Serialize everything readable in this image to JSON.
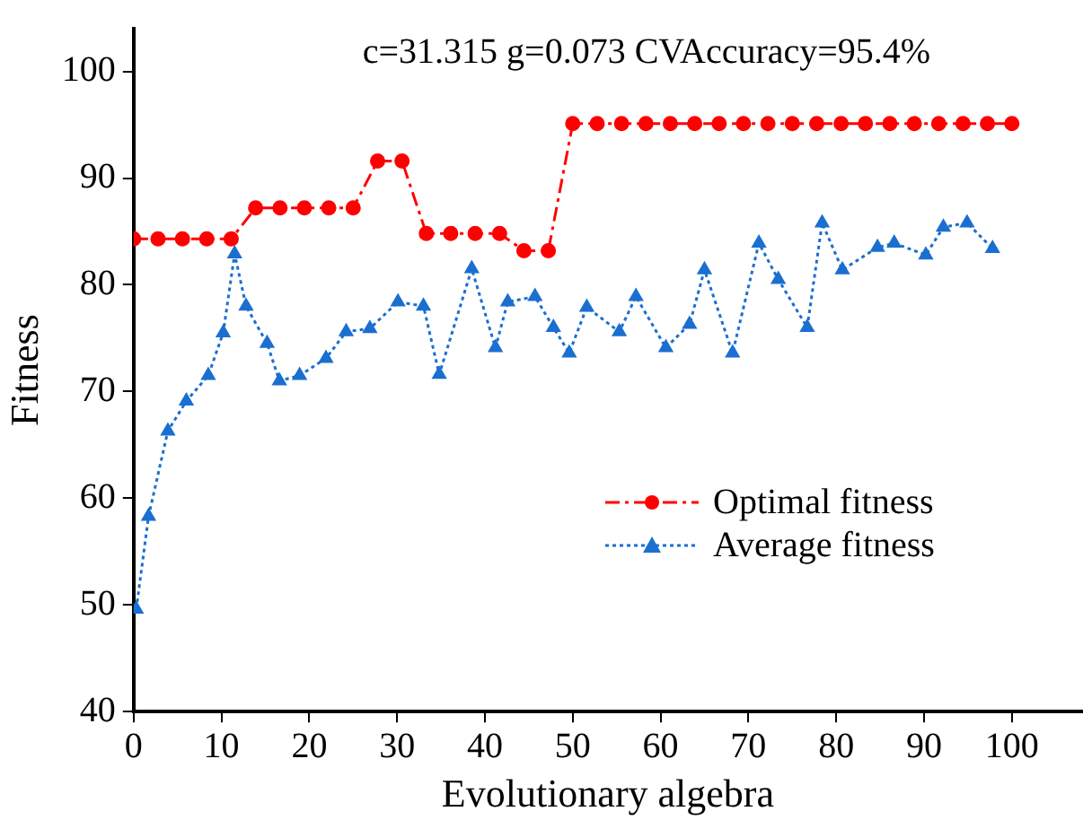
{
  "chart_data": {
    "type": "line",
    "title": "c=31.315 g=0.073 CVAccuracy=95.4%",
    "xlabel": "Evolutionary algebra",
    "ylabel": "Fitness",
    "xlim": [
      0,
      108
    ],
    "xticks": [
      0,
      10,
      20,
      30,
      40,
      50,
      60,
      70,
      80,
      90,
      100
    ],
    "ylim": [
      40,
      104
    ],
    "yticks": [
      40,
      50,
      60,
      70,
      80,
      90,
      100
    ],
    "grid": false,
    "legend": "right",
    "series": [
      {
        "name": "Optimal fitness",
        "color": "#ff0000",
        "marker": "circle",
        "line_style": "dashdot",
        "x": [
          0,
          2.78,
          5.56,
          8.33,
          11.11,
          13.89,
          16.67,
          19.44,
          22.22,
          25,
          27.78,
          30.56,
          33.33,
          36.11,
          38.89,
          41.67,
          44.44,
          47.22,
          50,
          52.78,
          55.56,
          58.33,
          61.11,
          63.89,
          66.67,
          69.44,
          72.22,
          75,
          77.78,
          80.56,
          83.33,
          86.11,
          88.89,
          91.67,
          94.44,
          97.22,
          100
        ],
        "values": [
          84.3,
          84.3,
          84.3,
          84.3,
          84.3,
          87.2,
          87.2,
          87.2,
          87.2,
          87.2,
          91.6,
          91.6,
          84.8,
          84.8,
          84.8,
          84.8,
          83.2,
          83.2,
          95.1,
          95.1,
          95.1,
          95.1,
          95.1,
          95.1,
          95.1,
          95.1,
          95.1,
          95.1,
          95.1,
          95.1,
          95.1,
          95.1,
          95.1,
          95.1,
          95.1,
          95.1,
          95.1
        ]
      },
      {
        "name": "Average fitness",
        "color": "#1a6fd0",
        "marker": "triangle",
        "line_style": "dotted",
        "x": [
          0.3,
          1.7,
          3.9,
          6.0,
          8.5,
          10.2,
          11.5,
          12.8,
          15.2,
          16.6,
          18.9,
          21.9,
          24.2,
          26.9,
          30.1,
          33.0,
          34.8,
          38.5,
          41.2,
          42.6,
          45.7,
          47.8,
          49.6,
          51.6,
          55.3,
          57.2,
          60.6,
          63.3,
          65.0,
          68.2,
          71.2,
          73.4,
          76.7,
          78.4,
          80.7,
          84.7,
          86.6,
          90.2,
          92.2,
          94.9,
          97.8
        ],
        "values": [
          49.6,
          58.3,
          66.3,
          69.1,
          71.5,
          75.5,
          82.9,
          78.0,
          74.5,
          71.0,
          71.5,
          73.1,
          75.6,
          75.9,
          78.4,
          78.0,
          71.6,
          81.5,
          74.1,
          78.4,
          78.9,
          76.0,
          73.6,
          77.9,
          75.6,
          78.9,
          74.1,
          76.3,
          81.4,
          73.6,
          83.9,
          80.5,
          76.0,
          85.8,
          81.4,
          83.5,
          83.9,
          82.8,
          85.4,
          85.8,
          83.4
        ]
      }
    ]
  }
}
